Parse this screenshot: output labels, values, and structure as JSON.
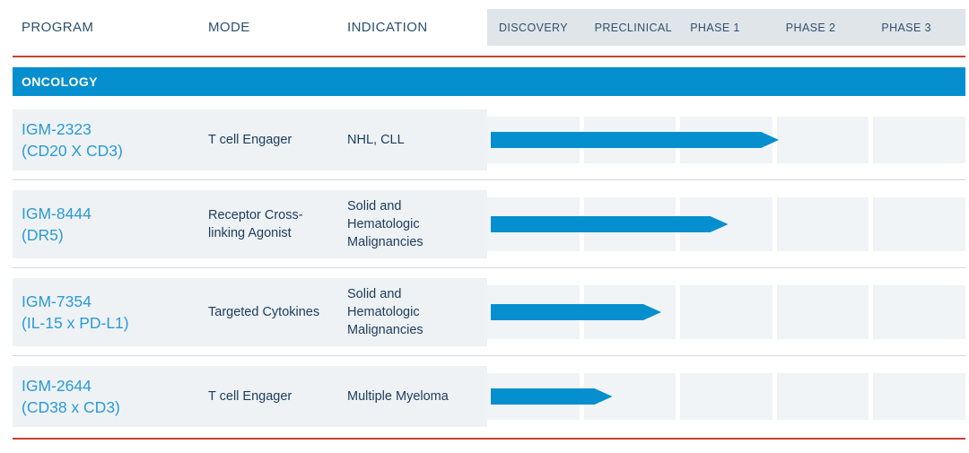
{
  "header": {
    "columns": [
      "PROGRAM",
      "MODE",
      "INDICATION"
    ],
    "phases": [
      "DISCOVERY",
      "PRECLINICAL",
      "PHASE 1",
      "PHASE 2",
      "PHASE 3"
    ]
  },
  "section": {
    "label": "ONCOLOGY"
  },
  "programs": [
    {
      "name": "IGM-2323",
      "target": "(CD20 X CD3)",
      "mode": "T cell Engager",
      "indication": "NHL, CLL",
      "end_phase_units": 3.05,
      "phase_reached": "Phase 2"
    },
    {
      "name": "IGM-8444",
      "target": "(DR5)",
      "mode": "Receptor Cross-linking Agonist",
      "indication": "Solid and Hematologic Malignancies",
      "end_phase_units": 2.52,
      "phase_reached": "Phase 1"
    },
    {
      "name": "IGM-7354",
      "target": "(IL-15 x PD-L1)",
      "mode": "Targeted Cytokines",
      "indication": "Solid and Hematologic Malignancies",
      "end_phase_units": 1.82,
      "phase_reached": "Preclinical"
    },
    {
      "name": "IGM-2644",
      "target": "(CD38 x CD3)",
      "mode": "T cell Engager",
      "indication": "Multiple Myeloma",
      "end_phase_units": 1.31,
      "phase_reached": "Preclinical"
    }
  ],
  "colors": {
    "accent_blue": "#058fce",
    "program_blue": "#2b9ad6",
    "text_navy": "#1c3b5d",
    "header_navy": "#2d5070",
    "band_gray": "#dfe5e9",
    "row_gray": "#eef2f4",
    "cell_gray": "#f0f4f6",
    "separator": "#ccd9e2",
    "rule_red": "#c5432f"
  },
  "chart_data": {
    "type": "bar",
    "orientation": "horizontal",
    "title": "ONCOLOGY",
    "categories": [
      "IGM-2323 (CD20 X CD3)",
      "IGM-8444 (DR5)",
      "IGM-7354 (IL-15 x PD-L1)",
      "IGM-2644 (CD38 x CD3)"
    ],
    "values": [
      3.05,
      2.52,
      1.82,
      1.31
    ],
    "value_unit": "phase units: Discovery=0-1, Preclinical=1-2, Phase 1=2-3, Phase 2=3-4, Phase 3=4-5",
    "x_axis_labels": [
      "DISCOVERY",
      "PRECLINICAL",
      "PHASE 1",
      "PHASE 2",
      "PHASE 3"
    ],
    "xlim": [
      0,
      5
    ],
    "grid": false,
    "legend": false
  }
}
